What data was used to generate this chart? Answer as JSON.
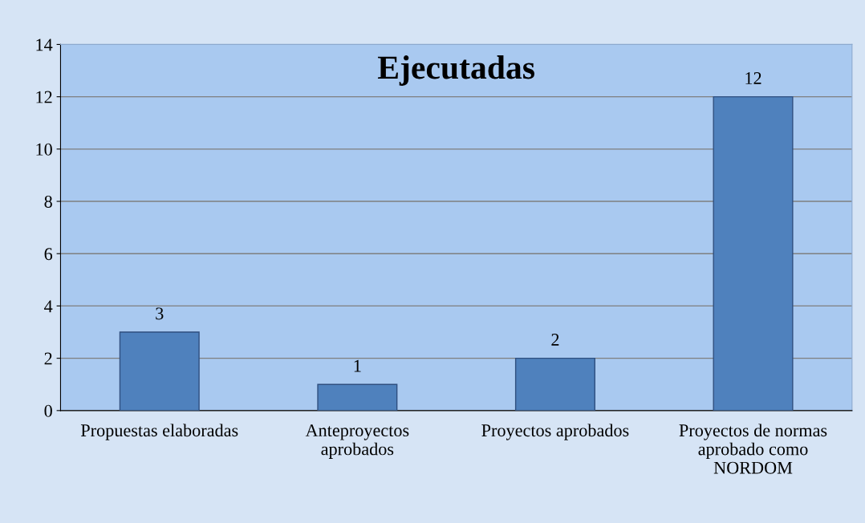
{
  "chart_data": {
    "type": "bar",
    "title": "Ejecutadas",
    "categories": [
      "Propuestas elaboradas",
      "Anteproyectos\naprobados",
      "Proyectos aprobados",
      "Proyectos de normas\naprobado como\nNORDOM"
    ],
    "values": [
      3,
      1,
      2,
      12
    ],
    "color": "#4f81bd",
    "data_labels": true,
    "ylim": [
      0,
      14
    ],
    "yticks": [
      0,
      2,
      4,
      6,
      8,
      10,
      12,
      14
    ],
    "grid": "y",
    "legend": false
  }
}
